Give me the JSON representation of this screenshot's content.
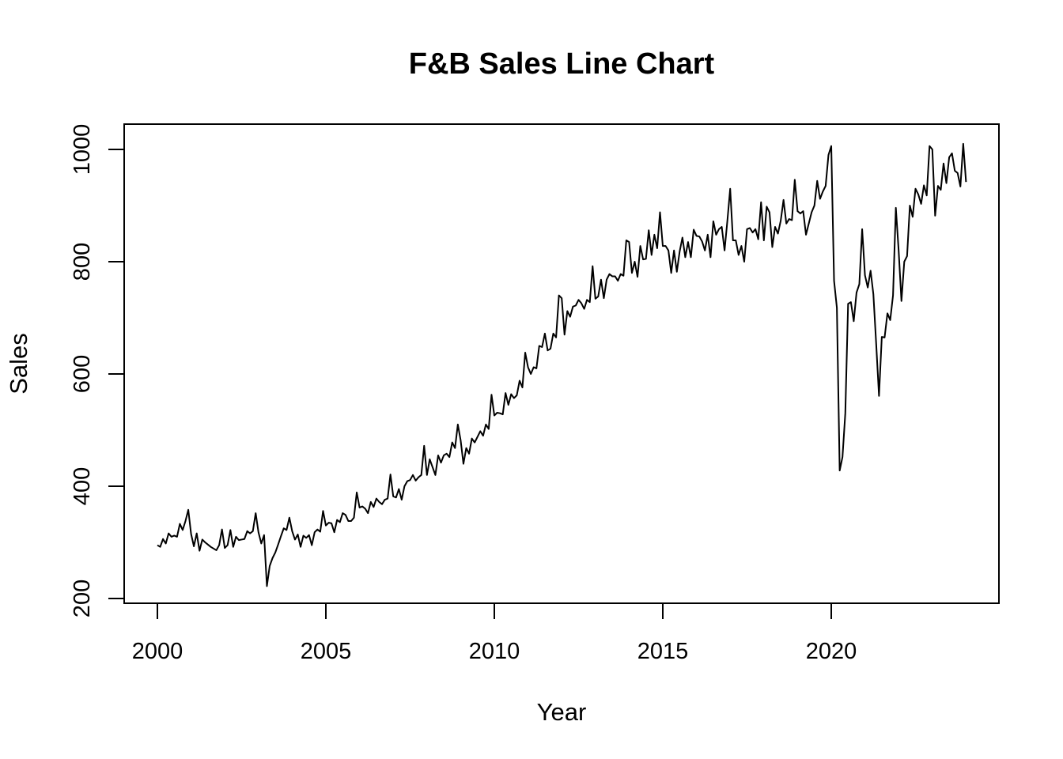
{
  "chart_data": {
    "type": "line",
    "title": "F&B Sales Line Chart",
    "xlabel": "Year",
    "ylabel": "Sales",
    "xlim": [
      1999.0,
      2025.0
    ],
    "ylim": [
      200,
      1040
    ],
    "x_ticks": [
      2000,
      2005,
      2010,
      2015,
      2020
    ],
    "y_ticks": [
      200,
      400,
      600,
      800,
      1000
    ],
    "x_tick_labels": [
      "2000",
      "2005",
      "2010",
      "2015",
      "2020"
    ],
    "y_tick_labels": [
      "200",
      "400",
      "600",
      "800",
      "1000"
    ],
    "grid": false,
    "legend": "none",
    "line_color": "#000000",
    "series": [
      {
        "x": [
          2000.0,
          2000.083,
          2000.167,
          2000.25,
          2000.333,
          2000.417,
          2000.5,
          2000.583,
          2000.667,
          2000.75,
          2000.833,
          2000.917,
          2001.0,
          2001.083,
          2001.167,
          2001.25,
          2001.333,
          2001.417,
          2001.5,
          2001.583,
          2001.667,
          2001.75,
          2001.833,
          2001.917,
          2002.0,
          2002.083,
          2002.167,
          2002.25,
          2002.333,
          2002.417,
          2002.5,
          2002.583,
          2002.667,
          2002.75,
          2002.833,
          2002.917,
          2003.0,
          2003.083,
          2003.167,
          2003.25,
          2003.333,
          2003.417,
          2003.5,
          2003.583,
          2003.667,
          2003.75,
          2003.833,
          2003.917,
          2004.0,
          2004.083,
          2004.167,
          2004.25,
          2004.333,
          2004.417,
          2004.5,
          2004.583,
          2004.667,
          2004.75,
          2004.833,
          2004.917,
          2005.0,
          2005.083,
          2005.167,
          2005.25,
          2005.333,
          2005.417,
          2005.5,
          2005.583,
          2005.667,
          2005.75,
          2005.833,
          2005.917,
          2006.0,
          2006.083,
          2006.167,
          2006.25,
          2006.333,
          2006.417,
          2006.5,
          2006.583,
          2006.667,
          2006.75,
          2006.833,
          2006.917,
          2007.0,
          2007.083,
          2007.167,
          2007.25,
          2007.333,
          2007.417,
          2007.5,
          2007.583,
          2007.667,
          2007.75,
          2007.833,
          2007.917,
          2008.0,
          2008.083,
          2008.167,
          2008.25,
          2008.333,
          2008.417,
          2008.5,
          2008.583,
          2008.667,
          2008.75,
          2008.833,
          2008.917,
          2009.0,
          2009.083,
          2009.167,
          2009.25,
          2009.333,
          2009.417,
          2009.5,
          2009.583,
          2009.667,
          2009.75,
          2009.833,
          2009.917,
          2010.0,
          2010.083,
          2010.167,
          2010.25,
          2010.333,
          2010.417,
          2010.5,
          2010.583,
          2010.667,
          2010.75,
          2010.833,
          2010.917,
          2011.0,
          2011.083,
          2011.167,
          2011.25,
          2011.333,
          2011.417,
          2011.5,
          2011.583,
          2011.667,
          2011.75,
          2011.833,
          2011.917,
          2012.0,
          2012.083,
          2012.167,
          2012.25,
          2012.333,
          2012.417,
          2012.5,
          2012.583,
          2012.667,
          2012.75,
          2012.833,
          2012.917,
          2013.0,
          2013.083,
          2013.167,
          2013.25,
          2013.333,
          2013.417,
          2013.5,
          2013.583,
          2013.667,
          2013.75,
          2013.833,
          2013.917,
          2014.0,
          2014.083,
          2014.167,
          2014.25,
          2014.333,
          2014.417,
          2014.5,
          2014.583,
          2014.667,
          2014.75,
          2014.833,
          2014.917,
          2015.0,
          2015.083,
          2015.167,
          2015.25,
          2015.333,
          2015.417,
          2015.5,
          2015.583,
          2015.667,
          2015.75,
          2015.833,
          2015.917,
          2016.0,
          2016.083,
          2016.167,
          2016.25,
          2016.333,
          2016.417,
          2016.5,
          2016.583,
          2016.667,
          2016.75,
          2016.833,
          2016.917,
          2017.0,
          2017.083,
          2017.167,
          2017.25,
          2017.333,
          2017.417,
          2017.5,
          2017.583,
          2017.667,
          2017.75,
          2017.833,
          2017.917,
          2018.0,
          2018.083,
          2018.167,
          2018.25,
          2018.333,
          2018.417,
          2018.5,
          2018.583,
          2018.667,
          2018.75,
          2018.833,
          2018.917,
          2019.0,
          2019.083,
          2019.167,
          2019.25,
          2019.333,
          2019.417,
          2019.5,
          2019.583,
          2019.667,
          2019.75,
          2019.833,
          2019.917,
          2020.0,
          2020.083,
          2020.167,
          2020.25,
          2020.333,
          2020.417,
          2020.5,
          2020.583,
          2020.667,
          2020.75,
          2020.833,
          2020.917,
          2021.0,
          2021.083,
          2021.167,
          2021.25,
          2021.333,
          2021.417,
          2021.5,
          2021.583,
          2021.667,
          2021.75,
          2021.833,
          2021.917,
          2022.0,
          2022.083,
          2022.167,
          2022.25,
          2022.333,
          2022.417,
          2022.5,
          2022.583,
          2022.667,
          2022.75,
          2022.833,
          2022.917,
          2023.0,
          2023.083,
          2023.167,
          2023.25,
          2023.333,
          2023.417,
          2023.5,
          2023.583,
          2023.667,
          2023.75,
          2023.833,
          2023.917,
          2024.0
        ],
        "y": [
          295,
          292,
          306,
          298,
          316,
          310,
          312,
          310,
          333,
          322,
          338,
          358,
          315,
          293,
          316,
          285,
          305,
          300,
          296,
          292,
          289,
          286,
          295,
          323,
          290,
          295,
          322,
          292,
          310,
          304,
          305,
          306,
          320,
          316,
          320,
          352,
          318,
          298,
          313,
          222,
          258,
          272,
          282,
          296,
          311,
          325,
          322,
          344,
          320,
          305,
          314,
          292,
          312,
          308,
          313,
          295,
          318,
          323,
          319,
          356,
          330,
          335,
          334,
          318,
          340,
          336,
          352,
          349,
          338,
          338,
          344,
          389,
          362,
          364,
          360,
          352,
          372,
          363,
          378,
          372,
          368,
          376,
          378,
          421,
          382,
          380,
          395,
          376,
          400,
          409,
          411,
          420,
          410,
          416,
          420,
          472,
          420,
          448,
          434,
          420,
          455,
          442,
          455,
          458,
          452,
          478,
          468,
          510,
          482,
          440,
          468,
          458,
          485,
          478,
          488,
          498,
          490,
          510,
          502,
          563,
          526,
          531,
          530,
          528,
          566,
          545,
          564,
          557,
          562,
          588,
          576,
          638,
          612,
          600,
          612,
          610,
          650,
          648,
          672,
          642,
          645,
          672,
          665,
          740,
          735,
          670,
          712,
          702,
          720,
          722,
          732,
          726,
          716,
          732,
          728,
          792,
          734,
          738,
          768,
          735,
          768,
          778,
          774,
          774,
          766,
          778,
          775,
          838,
          835,
          780,
          800,
          773,
          828,
          804,
          805,
          856,
          812,
          848,
          824,
          888,
          828,
          828,
          820,
          780,
          820,
          782,
          818,
          843,
          808,
          835,
          808,
          857,
          846,
          845,
          836,
          820,
          848,
          808,
          872,
          848,
          858,
          862,
          820,
          873,
          930,
          838,
          838,
          812,
          828,
          800,
          858,
          860,
          852,
          858,
          840,
          906,
          838,
          898,
          888,
          826,
          862,
          850,
          873,
          910,
          868,
          876,
          874,
          946,
          890,
          886,
          890,
          848,
          868,
          888,
          900,
          944,
          912,
          925,
          935,
          990,
          1006,
          766,
          718,
          428,
          452,
          530,
          725,
          728,
          694,
          745,
          760,
          858,
          776,
          754,
          784,
          742,
          654,
          561,
          666,
          665,
          708,
          696,
          740,
          896,
          820,
          730,
          800,
          810,
          900,
          880,
          930,
          920,
          903,
          936,
          918,
          1006,
          1000,
          882,
          935,
          928,
          975,
          940,
          986,
          993,
          962,
          958,
          934,
          1010,
          942
        ]
      }
    ]
  }
}
